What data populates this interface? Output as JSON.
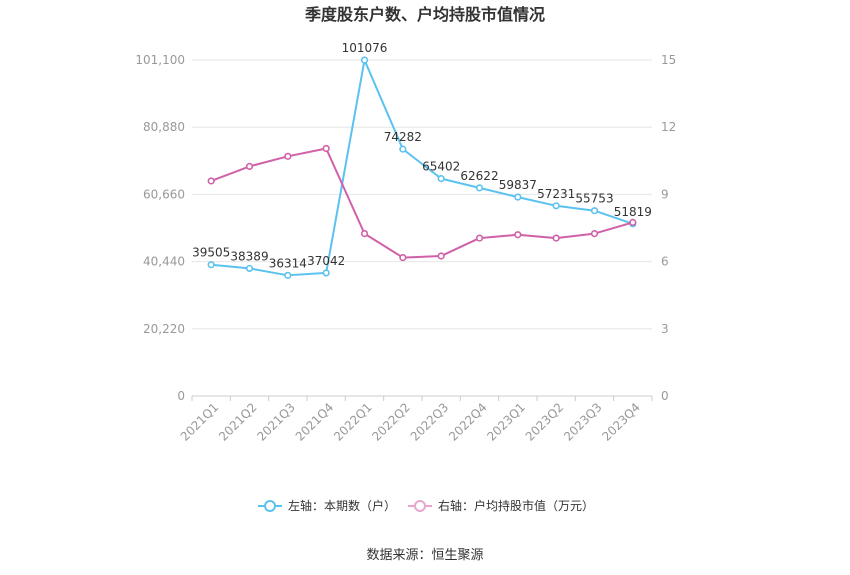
{
  "chart_data": {
    "type": "line",
    "title": "季度股东户数、户均持股市值情况",
    "categories": [
      "2021Q1",
      "2021Q2",
      "2021Q3",
      "2021Q4",
      "2022Q1",
      "2022Q2",
      "2022Q3",
      "2022Q4",
      "2023Q1",
      "2023Q2",
      "2023Q3",
      "2023Q4"
    ],
    "y_left": {
      "ticks": [
        "0",
        "20,220",
        "40,440",
        "60,660",
        "80,880",
        "101,100"
      ],
      "ylim": [
        0,
        101100
      ]
    },
    "y_right": {
      "ticks": [
        "0",
        "3",
        "6",
        "9",
        "12",
        "15"
      ],
      "ylim": [
        0,
        15
      ]
    },
    "series": [
      {
        "name": "左轴：本期数（户）",
        "axis": "left",
        "color": "#5bc2f0",
        "values": [
          39505,
          38389,
          36314,
          37042,
          101076,
          74282,
          65402,
          62622,
          59837,
          57231,
          55753,
          51819
        ],
        "labels": [
          "39505",
          "38389",
          "36314",
          "37042",
          "101076",
          "74282",
          "65402",
          "62622",
          "59837",
          "57231",
          "55753",
          "51819"
        ]
      },
      {
        "name": "右轴：户均持股市值（万元）",
        "axis": "right",
        "color": "#d060a8",
        "values": [
          9.6,
          10.25,
          10.7,
          11.05,
          7.25,
          6.18,
          6.25,
          7.05,
          7.2,
          7.05,
          7.25,
          7.75
        ]
      }
    ],
    "grid": true,
    "legend_position": "bottom"
  },
  "source": "数据来源：恒生聚源"
}
